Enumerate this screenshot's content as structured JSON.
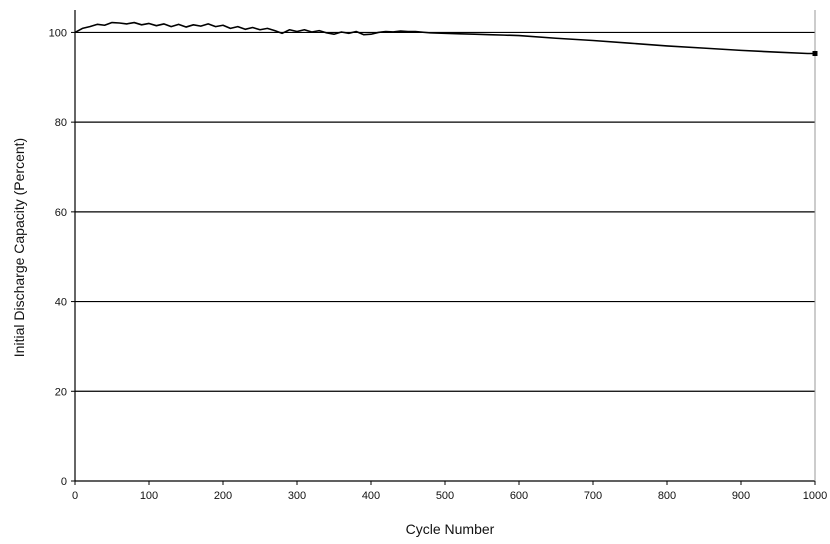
{
  "chart_data": {
    "type": "line",
    "title": "",
    "xlabel": "Cycle Number",
    "ylabel": "Initial Discharge Capacity (Percent)",
    "xlim": [
      0,
      1000
    ],
    "ylim": [
      0,
      100
    ],
    "x_ticks": [
      0,
      100,
      200,
      300,
      400,
      500,
      600,
      700,
      800,
      900,
      1000
    ],
    "y_ticks": [
      0,
      20,
      40,
      60,
      80,
      100
    ],
    "x_tick_labels": [
      "0",
      "100",
      "200",
      "300",
      "400",
      "500",
      "600",
      "700",
      "800",
      "900",
      "1000"
    ],
    "y_tick_labels": [
      "0",
      "20",
      "40",
      "60",
      "80",
      "100"
    ],
    "grid": "horizontal",
    "legend": "none",
    "series": [
      {
        "color": "#000000",
        "x": [
          0,
          10,
          20,
          30,
          40,
          50,
          60,
          70,
          80,
          90,
          100,
          110,
          120,
          130,
          140,
          150,
          160,
          170,
          180,
          190,
          200,
          210,
          220,
          230,
          240,
          250,
          260,
          270,
          280,
          290,
          300,
          310,
          320,
          330,
          340,
          350,
          360,
          370,
          380,
          390,
          400,
          410,
          420,
          430,
          440,
          450,
          460,
          480,
          500,
          520,
          540,
          560,
          580,
          600,
          650,
          700,
          750,
          800,
          850,
          900,
          950,
          990,
          1000
        ],
        "y": [
          100.0,
          100.9,
          101.3,
          101.8,
          101.6,
          102.2,
          102.1,
          101.9,
          102.2,
          101.7,
          102.0,
          101.5,
          101.9,
          101.3,
          101.8,
          101.2,
          101.7,
          101.4,
          101.9,
          101.3,
          101.6,
          100.9,
          101.3,
          100.7,
          101.1,
          100.6,
          100.9,
          100.4,
          99.8,
          100.6,
          100.2,
          100.6,
          100.1,
          100.4,
          99.9,
          99.6,
          100.1,
          99.8,
          100.2,
          99.5,
          99.6,
          100.0,
          100.2,
          100.1,
          100.3,
          100.2,
          100.2,
          99.9,
          99.8,
          99.7,
          99.6,
          99.5,
          99.4,
          99.3,
          98.7,
          98.2,
          97.6,
          97.0,
          96.5,
          96.0,
          95.6,
          95.3,
          95.3
        ]
      }
    ]
  }
}
